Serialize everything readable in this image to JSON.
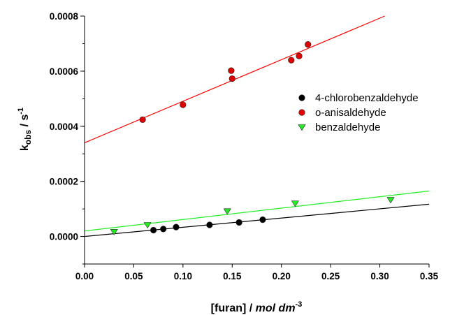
{
  "chart_data": {
    "type": "scatter",
    "title": "",
    "xlabel": {
      "main": "[furan] / ",
      "italic": "mol dm",
      "sup": "-3"
    },
    "ylabel": {
      "main": "k",
      "sub": "obs",
      "rest": " / s",
      "sup": "-1"
    },
    "xlim": [
      0,
      0.35
    ],
    "ylim": [
      -0.0001,
      0.0008
    ],
    "xticks": [
      "0.00",
      "0.05",
      "0.10",
      "0.15",
      "0.20",
      "0.25",
      "0.30",
      "0.35"
    ],
    "yticks": [
      "0.0000",
      "0.0002",
      "0.0004",
      "0.0006",
      "0.0008"
    ],
    "legend_position": "right",
    "grid": false,
    "series": [
      {
        "name": "4-chlorobenzaldehyde",
        "marker": "circle",
        "color": "#000000",
        "fit_color": "#000000",
        "points": [
          [
            0.07,
            2.3e-05
          ],
          [
            0.08,
            2.7e-05
          ],
          [
            0.093,
            3.4e-05
          ],
          [
            0.127,
            4.2e-05
          ],
          [
            0.157,
            5.1e-05
          ],
          [
            0.181,
            6.1e-05
          ]
        ],
        "fit": {
          "x": [
            0.0,
            0.35
          ],
          "y": [
            0.0,
            0.000117
          ]
        }
      },
      {
        "name": "o-anisaldehyde",
        "marker": "circle",
        "color": "#e00000",
        "fit_color": "#ff0000",
        "points": [
          [
            0.059,
            0.000424
          ],
          [
            0.1,
            0.000478
          ],
          [
            0.149,
            0.000602
          ],
          [
            0.15,
            0.000573
          ],
          [
            0.21,
            0.00064
          ],
          [
            0.218,
            0.000655
          ],
          [
            0.227,
            0.000697
          ]
        ],
        "fit": {
          "x": [
            0.0,
            0.305
          ],
          "y": [
            0.00034,
            0.0008
          ]
        }
      },
      {
        "name": "benzaldehyde",
        "marker": "triangle-down",
        "color": "#22ee22",
        "fit_color": "#22ee22",
        "points": [
          [
            0.03,
            1.7e-05
          ],
          [
            0.064,
            4.2e-05
          ],
          [
            0.145,
            9.2e-05
          ],
          [
            0.214,
            0.00012
          ],
          [
            0.311,
            0.000133
          ]
        ],
        "fit": {
          "x": [
            0.0,
            0.35
          ],
          "y": [
            2e-05,
            0.000165
          ]
        }
      }
    ]
  }
}
